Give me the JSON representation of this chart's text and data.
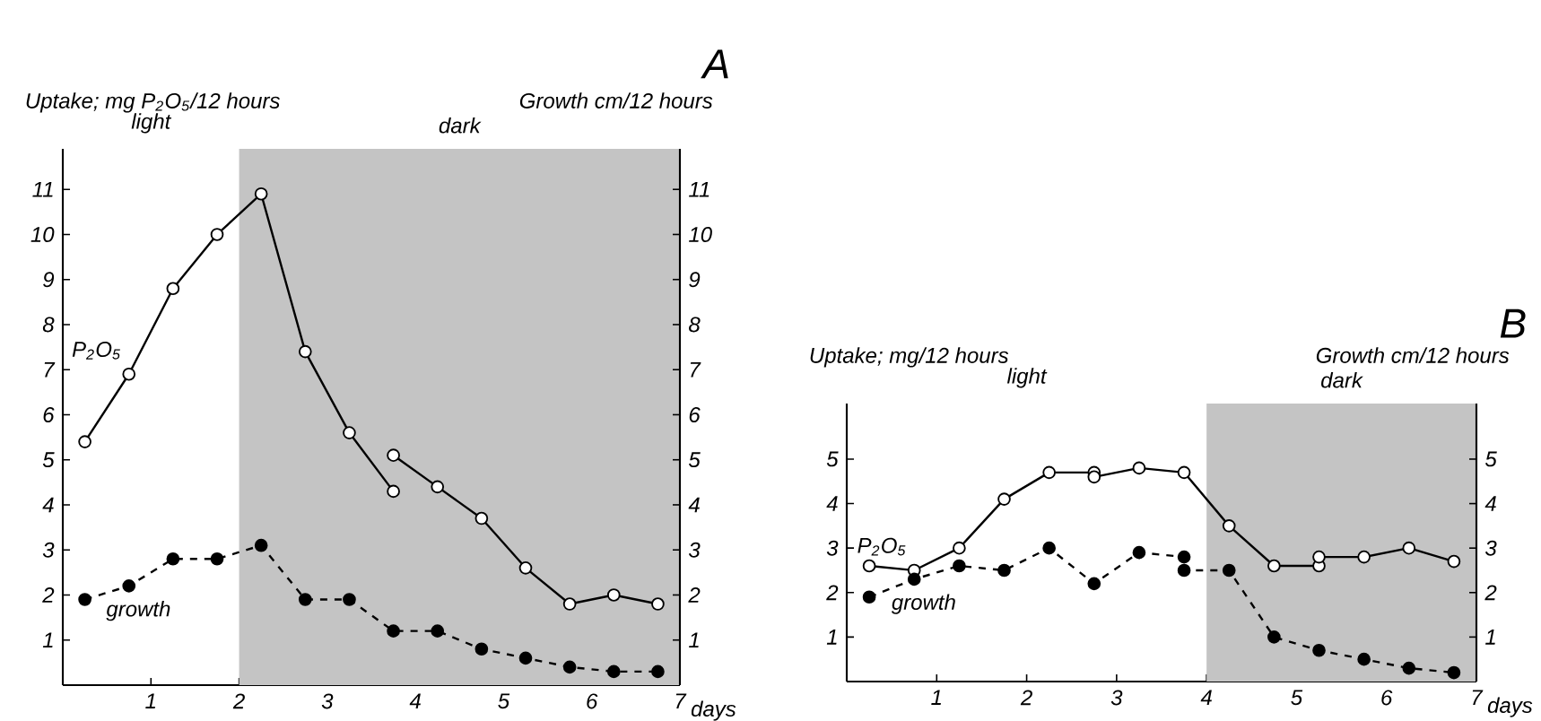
{
  "chart_data": [
    {
      "type": "line",
      "title": "A",
      "xlabel": "days",
      "ylabel": "Uptake; mg P$_{2}$O$_{5}$/12 hours",
      "y2label": "Growth cm/12 hours",
      "xlim": [
        0,
        7
      ],
      "xticks": [
        1,
        2,
        3,
        4,
        5,
        6,
        7
      ],
      "ylim": [
        0,
        11.9
      ],
      "yticks": [
        1,
        2,
        3,
        4,
        5,
        6,
        7,
        8,
        9,
        10,
        11
      ],
      "y2lim": [
        0,
        11.9
      ],
      "y2ticks": [
        1,
        2,
        3,
        4,
        5,
        6,
        7,
        8,
        9,
        10,
        11
      ],
      "marker": "circle",
      "annotations": [
        "light"
      ],
      "bands": [
        {
          "axis": "x",
          "from": 2,
          "to": 7,
          "label": "dark",
          "color": "#c4c4c4"
        }
      ],
      "series": [
        {
          "name": "P$_{2}$O$_{5}$",
          "color": "#000000",
          "line_style": "solid",
          "x": [
            0.25,
            0.75,
            1.25,
            1.75,
            2.25,
            2.75,
            3.25,
            3.75
          ],
          "values": [
            5.4,
            6.9,
            8.8,
            10.0,
            10.9,
            7.4,
            5.6,
            4.3
          ]
        },
        {
          "name": "growth",
          "color": "#000000",
          "line_style": "dashed",
          "x": [
            0.25,
            0.75,
            1.25,
            1.75,
            2.25,
            2.75,
            3.25,
            3.75,
            4.25,
            4.75,
            5.25,
            5.75,
            6.25,
            6.75
          ],
          "values": [
            1.9,
            2.2,
            2.8,
            2.8,
            3.1,
            1.9,
            1.9,
            1.2,
            1.2,
            0.8,
            0.6,
            0.4,
            0.3,
            0.3
          ]
        },
        {
          "color": "#000000",
          "line_style": "solid",
          "x": [
            3.75,
            4.25,
            4.75,
            5.25,
            5.75,
            6.25,
            6.75
          ],
          "values": [
            5.1,
            4.4,
            3.7,
            2.6,
            1.8,
            2.0,
            1.8
          ]
        }
      ]
    },
    {
      "type": "line",
      "title": "B",
      "xlabel": "days",
      "ylabel": "Uptake; mg/12 hours",
      "y2label": "Growth cm/12 hours",
      "xlim": [
        0,
        7
      ],
      "xticks": [
        1,
        2,
        3,
        4,
        5,
        6,
        7
      ],
      "ylim": [
        0,
        6.25
      ],
      "yticks": [
        1,
        2,
        3,
        4,
        5
      ],
      "y2lim": [
        0,
        6.25
      ],
      "y2ticks": [
        1,
        2,
        3,
        4,
        5
      ],
      "marker": "circle",
      "annotations": [
        "light"
      ],
      "bands": [
        {
          "axis": "x",
          "from": 4,
          "to": 7,
          "label": "dark",
          "color": "#c4c4c4"
        }
      ],
      "series": [
        {
          "name": "P$_{2}$O$_{5}$",
          "color": "#000000",
          "line_style": "solid",
          "x": [
            0.25,
            0.75,
            1.25,
            1.75,
            2.25,
            2.75,
            2.75,
            3.25,
            3.75,
            4.25,
            4.75,
            5.25,
            5.25,
            5.75,
            6.25,
            6.75
          ],
          "values": [
            2.6,
            2.5,
            3.0,
            4.1,
            4.7,
            4.7,
            4.6,
            4.8,
            4.7,
            3.5,
            2.6,
            2.6,
            2.8,
            2.8,
            3.0,
            2.7
          ]
        },
        {
          "name": "growth",
          "color": "#000000",
          "line_style": "dashed",
          "x": [
            0.25,
            0.75,
            1.25,
            1.75,
            2.25,
            2.75,
            3.25,
            3.75,
            3.75,
            4.25,
            4.75,
            5.25,
            5.75,
            6.25,
            6.75
          ],
          "values": [
            1.9,
            2.3,
            2.6,
            2.5,
            3.0,
            2.2,
            2.9,
            2.8,
            2.5,
            2.5,
            1.0,
            0.7,
            0.5,
            0.3,
            0.2
          ]
        }
      ]
    }
  ]
}
